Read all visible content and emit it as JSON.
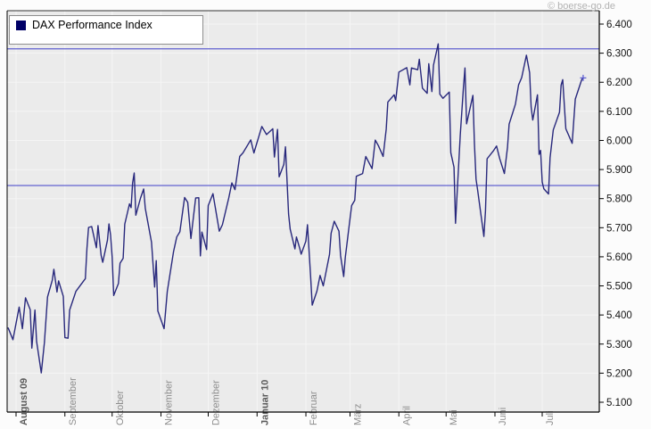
{
  "watermark": "© boerse-go.de",
  "legend": {
    "label": "DAX Performance Index",
    "swatch_color": "#000066"
  },
  "colors": {
    "line": "#28287c",
    "legend_swatch": "#000066",
    "horizontal_line_blue": "#6262d0",
    "plot_background": "#ebebeb",
    "gridline": "#f5f5f5",
    "axis": "#000000",
    "top_border": "#333333",
    "month_label": "#8d8d8d",
    "month_label_bold": "#5c5c5c",
    "y_label": "#141414",
    "watermark_gray": "#b2b2b2",
    "end_marker": "#5a5ad0"
  },
  "chart_data": {
    "type": "line",
    "title": "DAX Performance Index",
    "legend_position": "top-left",
    "grid": true,
    "y_axis": {
      "side": "right",
      "min": 5100,
      "max": 6400,
      "step": 100,
      "ticks": [
        {
          "value": 6400,
          "label": "6.400"
        },
        {
          "value": 6300,
          "label": "6.300"
        },
        {
          "value": 6200,
          "label": "6.200"
        },
        {
          "value": 6100,
          "label": "6.100"
        },
        {
          "value": 6000,
          "label": "6.000"
        },
        {
          "value": 5900,
          "label": "5.900"
        },
        {
          "value": 5800,
          "label": "5.800"
        },
        {
          "value": 5700,
          "label": "5.700"
        },
        {
          "value": 5600,
          "label": "5.600"
        },
        {
          "value": 5500,
          "label": "5.500"
        },
        {
          "value": 5400,
          "label": "5.400"
        },
        {
          "value": 5300,
          "label": "5.300"
        },
        {
          "value": 5200,
          "label": "5.200"
        },
        {
          "value": 5100,
          "label": "5.100"
        }
      ]
    },
    "x_axis": {
      "months": [
        {
          "label": "August 09",
          "date": "2009-08-01",
          "bold": true
        },
        {
          "label": "September",
          "date": "2009-09-01",
          "bold": false
        },
        {
          "label": "Oktober",
          "date": "2009-10-01",
          "bold": false
        },
        {
          "label": "November",
          "date": "2009-11-01",
          "bold": false
        },
        {
          "label": "Dezember",
          "date": "2009-12-01",
          "bold": false
        },
        {
          "label": "Januar 10",
          "date": "2010-01-01",
          "bold": true
        },
        {
          "label": "Februar",
          "date": "2010-02-01",
          "bold": false
        },
        {
          "label": "März",
          "date": "2010-03-01",
          "bold": false
        },
        {
          "label": "April",
          "date": "2010-04-01",
          "bold": false
        },
        {
          "label": "Mai",
          "date": "2010-05-01",
          "bold": false
        },
        {
          "label": "Juni",
          "date": "2010-06-01",
          "bold": false
        },
        {
          "label": "Juli",
          "date": "2010-07-01",
          "bold": false
        }
      ]
    },
    "horizontal_lines": [
      {
        "name": "resistance",
        "value": 6315
      },
      {
        "name": "support",
        "value": 5845
      }
    ],
    "series": [
      {
        "name": "DAX Performance Index",
        "color": "#28287c",
        "points": [
          [
            "2009-07-27",
            5355
          ],
          [
            "2009-07-30",
            5315
          ],
          [
            "2009-08-03",
            5427
          ],
          [
            "2009-08-05",
            5353
          ],
          [
            "2009-08-07",
            5459
          ],
          [
            "2009-08-10",
            5418
          ],
          [
            "2009-08-11",
            5286
          ],
          [
            "2009-08-13",
            5417
          ],
          [
            "2009-08-14",
            5310
          ],
          [
            "2009-08-17",
            5201
          ],
          [
            "2009-08-19",
            5305
          ],
          [
            "2009-08-21",
            5462
          ],
          [
            "2009-08-24",
            5519
          ],
          [
            "2009-08-25",
            5557
          ],
          [
            "2009-08-27",
            5479
          ],
          [
            "2009-08-28",
            5517
          ],
          [
            "2009-08-31",
            5464
          ],
          [
            "2009-09-01",
            5322
          ],
          [
            "2009-09-03",
            5320
          ],
          [
            "2009-09-04",
            5417
          ],
          [
            "2009-09-08",
            5481
          ],
          [
            "2009-09-10",
            5496
          ],
          [
            "2009-09-14",
            5525
          ],
          [
            "2009-09-15",
            5629
          ],
          [
            "2009-09-16",
            5701
          ],
          [
            "2009-09-18",
            5704
          ],
          [
            "2009-09-21",
            5631
          ],
          [
            "2009-09-22",
            5707
          ],
          [
            "2009-09-24",
            5605
          ],
          [
            "2009-09-25",
            5581
          ],
          [
            "2009-09-28",
            5657
          ],
          [
            "2009-09-29",
            5713
          ],
          [
            "2009-09-30",
            5675
          ],
          [
            "2009-10-01",
            5598
          ],
          [
            "2009-10-02",
            5467
          ],
          [
            "2009-10-05",
            5508
          ],
          [
            "2009-10-06",
            5578
          ],
          [
            "2009-10-08",
            5595
          ],
          [
            "2009-10-09",
            5712
          ],
          [
            "2009-10-12",
            5782
          ],
          [
            "2009-10-13",
            5769
          ],
          [
            "2009-10-14",
            5854
          ],
          [
            "2009-10-15",
            5888
          ],
          [
            "2009-10-16",
            5743
          ],
          [
            "2009-10-19",
            5802
          ],
          [
            "2009-10-21",
            5833
          ],
          [
            "2009-10-22",
            5767
          ],
          [
            "2009-10-26",
            5650
          ],
          [
            "2009-10-28",
            5496
          ],
          [
            "2009-10-29",
            5587
          ],
          [
            "2009-10-30",
            5414
          ],
          [
            "2009-11-03",
            5353
          ],
          [
            "2009-11-05",
            5481
          ],
          [
            "2009-11-09",
            5618
          ],
          [
            "2009-11-11",
            5668
          ],
          [
            "2009-11-13",
            5686
          ],
          [
            "2009-11-16",
            5804
          ],
          [
            "2009-11-18",
            5787
          ],
          [
            "2009-11-20",
            5663
          ],
          [
            "2009-11-23",
            5802
          ],
          [
            "2009-11-25",
            5803
          ],
          [
            "2009-11-26",
            5603
          ],
          [
            "2009-11-27",
            5685
          ],
          [
            "2009-11-30",
            5625
          ],
          [
            "2009-12-01",
            5776
          ],
          [
            "2009-12-04",
            5817
          ],
          [
            "2009-12-08",
            5688
          ],
          [
            "2009-12-10",
            5710
          ],
          [
            "2009-12-14",
            5802
          ],
          [
            "2009-12-16",
            5854
          ],
          [
            "2009-12-18",
            5831
          ],
          [
            "2009-12-21",
            5945
          ],
          [
            "2009-12-23",
            5957
          ],
          [
            "2009-12-28",
            6002
          ],
          [
            "2009-12-30",
            5957
          ],
          [
            "2010-01-04",
            6048
          ],
          [
            "2010-01-07",
            6020
          ],
          [
            "2010-01-11",
            6040
          ],
          [
            "2010-01-12",
            5943
          ],
          [
            "2010-01-14",
            6038
          ],
          [
            "2010-01-15",
            5875
          ],
          [
            "2010-01-18",
            5918
          ],
          [
            "2010-01-19",
            5978
          ],
          [
            "2010-01-21",
            5747
          ],
          [
            "2010-01-22",
            5695
          ],
          [
            "2010-01-25",
            5627
          ],
          [
            "2010-01-26",
            5668
          ],
          [
            "2010-01-28",
            5630
          ],
          [
            "2010-01-29",
            5609
          ],
          [
            "2010-02-01",
            5654
          ],
          [
            "2010-02-02",
            5710
          ],
          [
            "2010-02-04",
            5533
          ],
          [
            "2010-02-05",
            5434
          ],
          [
            "2010-02-08",
            5482
          ],
          [
            "2010-02-10",
            5536
          ],
          [
            "2010-02-12",
            5500
          ],
          [
            "2010-02-16",
            5608
          ],
          [
            "2010-02-17",
            5681
          ],
          [
            "2010-02-19",
            5722
          ],
          [
            "2010-02-22",
            5688
          ],
          [
            "2010-02-23",
            5604
          ],
          [
            "2010-02-25",
            5532
          ],
          [
            "2010-02-26",
            5598
          ],
          [
            "2010-03-02",
            5776
          ],
          [
            "2010-03-04",
            5794
          ],
          [
            "2010-03-05",
            5877
          ],
          [
            "2010-03-09",
            5886
          ],
          [
            "2010-03-11",
            5945
          ],
          [
            "2010-03-15",
            5903
          ],
          [
            "2010-03-17",
            6001
          ],
          [
            "2010-03-19",
            5982
          ],
          [
            "2010-03-22",
            5945
          ],
          [
            "2010-03-24",
            6039
          ],
          [
            "2010-03-25",
            6132
          ],
          [
            "2010-03-29",
            6157
          ],
          [
            "2010-03-30",
            6137
          ],
          [
            "2010-04-01",
            6235
          ],
          [
            "2010-04-06",
            6250
          ],
          [
            "2010-04-08",
            6191
          ],
          [
            "2010-04-09",
            6249
          ],
          [
            "2010-04-13",
            6243
          ],
          [
            "2010-04-14",
            6279
          ],
          [
            "2010-04-16",
            6180
          ],
          [
            "2010-04-19",
            6162
          ],
          [
            "2010-04-20",
            6264
          ],
          [
            "2010-04-22",
            6168
          ],
          [
            "2010-04-23",
            6259
          ],
          [
            "2010-04-26",
            6332
          ],
          [
            "2010-04-27",
            6159
          ],
          [
            "2010-04-29",
            6145
          ],
          [
            "2010-05-03",
            6166
          ],
          [
            "2010-05-04",
            5958
          ],
          [
            "2010-05-06",
            5908
          ],
          [
            "2010-05-07",
            5715
          ],
          [
            "2010-05-10",
            6018
          ],
          [
            "2010-05-12",
            6183
          ],
          [
            "2010-05-13",
            6249
          ],
          [
            "2010-05-14",
            6057
          ],
          [
            "2010-05-18",
            6155
          ],
          [
            "2010-05-19",
            5989
          ],
          [
            "2010-05-20",
            5867
          ],
          [
            "2010-05-21",
            5829
          ],
          [
            "2010-05-25",
            5670
          ],
          [
            "2010-05-26",
            5758
          ],
          [
            "2010-05-27",
            5937
          ],
          [
            "2010-05-31",
            5964
          ],
          [
            "2010-06-02",
            5981
          ],
          [
            "2010-06-04",
            5938
          ],
          [
            "2010-06-07",
            5886
          ],
          [
            "2010-06-09",
            5977
          ],
          [
            "2010-06-10",
            6056
          ],
          [
            "2010-06-14",
            6125
          ],
          [
            "2010-06-16",
            6191
          ],
          [
            "2010-06-18",
            6216
          ],
          [
            "2010-06-21",
            6293
          ],
          [
            "2010-06-23",
            6233
          ],
          [
            "2010-06-24",
            6115
          ],
          [
            "2010-06-25",
            6070
          ],
          [
            "2010-06-28",
            6157
          ],
          [
            "2010-06-29",
            5952
          ],
          [
            "2010-06-30",
            5966
          ],
          [
            "2010-07-01",
            5857
          ],
          [
            "2010-07-02",
            5834
          ],
          [
            "2010-07-05",
            5816
          ],
          [
            "2010-07-06",
            5940
          ],
          [
            "2010-07-08",
            6036
          ],
          [
            "2010-07-12",
            6097
          ],
          [
            "2010-07-13",
            6190
          ],
          [
            "2010-07-14",
            6209
          ],
          [
            "2010-07-16",
            6040
          ],
          [
            "2010-07-20",
            5990
          ],
          [
            "2010-07-22",
            6142
          ],
          [
            "2010-07-26",
            6208
          ],
          [
            "2010-07-27",
            6215
          ]
        ]
      }
    ]
  }
}
